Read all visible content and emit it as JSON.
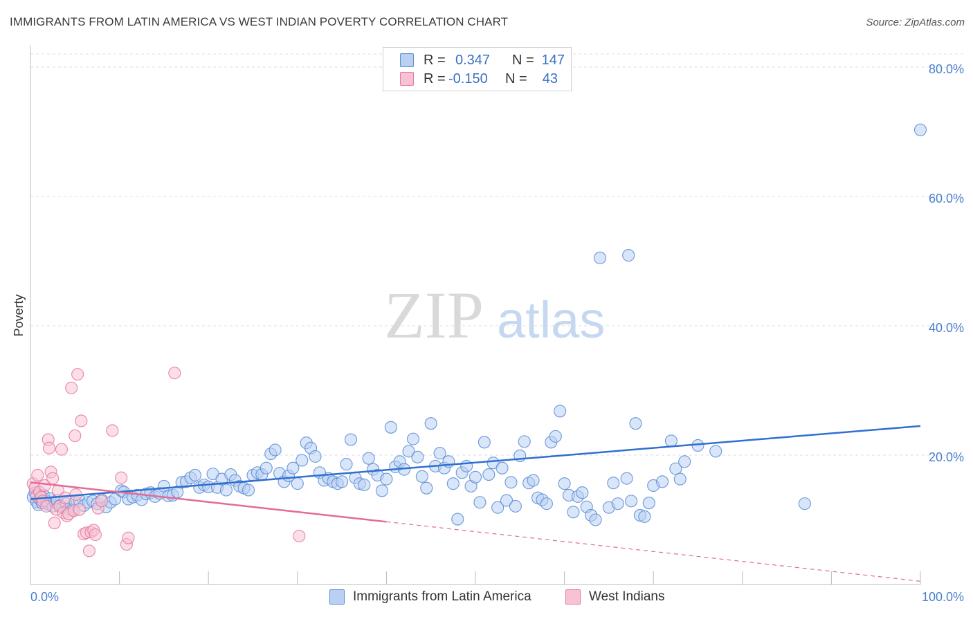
{
  "header": {
    "title": "IMMIGRANTS FROM LATIN AMERICA VS WEST INDIAN POVERTY CORRELATION CHART",
    "source": "Source: ZipAtlas.com"
  },
  "watermark": {
    "zip": "ZIP",
    "atlas": "atlas"
  },
  "legend": {
    "rows": [
      {
        "r_label": "R =",
        "r_value": "0.347",
        "n_label": "N =",
        "n_value": "147",
        "color": "#5b8ed6",
        "fill": "#b9d0f2"
      },
      {
        "r_label": "R =",
        "r_value": "-0.150",
        "n_label": "N =",
        "n_value": "43",
        "color": "#e47aa0",
        "fill": "#f7c3d4"
      }
    ]
  },
  "chart_data": {
    "type": "scatter",
    "title": "IMMIGRANTS FROM LATIN AMERICA VS WEST INDIAN POVERTY CORRELATION CHART",
    "xlabel": "",
    "ylabel": "Poverty",
    "xlim": [
      0,
      100
    ],
    "ylim": [
      0,
      80
    ],
    "x_tick_labels": [
      "0.0%",
      "100.0%"
    ],
    "y_ticks": [
      20,
      40,
      60,
      80
    ],
    "y_tick_labels": [
      "20.0%",
      "40.0%",
      "60.0%",
      "80.0%"
    ],
    "grid": true,
    "legend_position": "top-center",
    "series": [
      {
        "name": "Immigrants from Latin America",
        "color": "#5b8ed6",
        "fill": "#b9d0f2",
        "trend": {
          "x": [
            0,
            100
          ],
          "y": [
            13.2,
            24.5
          ],
          "style": "solid",
          "line_color": "#2f6fd0"
        },
        "points": [
          [
            0.3,
            13.5
          ],
          [
            0.5,
            14.2
          ],
          [
            0.7,
            12.8
          ],
          [
            0.9,
            12.3
          ],
          [
            1.1,
            13.1
          ],
          [
            1.3,
            12.6
          ],
          [
            1.5,
            13.8
          ],
          [
            1.8,
            12.9
          ],
          [
            2.0,
            12.4
          ],
          [
            2.2,
            13.3
          ],
          [
            2.5,
            12.1
          ],
          [
            2.8,
            12.7
          ],
          [
            3.0,
            13.0
          ],
          [
            3.3,
            12.2
          ],
          [
            3.6,
            11.9
          ],
          [
            4.0,
            12.5
          ],
          [
            4.3,
            11.7
          ],
          [
            4.7,
            11.5
          ],
          [
            5.0,
            12.8
          ],
          [
            5.5,
            13.0
          ],
          [
            6.0,
            12.2
          ],
          [
            6.5,
            12.7
          ],
          [
            7.0,
            12.9
          ],
          [
            7.5,
            12.5
          ],
          [
            8.0,
            13.1
          ],
          [
            8.5,
            12.0
          ],
          [
            9.0,
            12.7
          ],
          [
            9.5,
            13.2
          ],
          [
            10.2,
            14.5
          ],
          [
            10.5,
            14.3
          ],
          [
            11.0,
            13.2
          ],
          [
            11.5,
            13.5
          ],
          [
            12.0,
            13.8
          ],
          [
            12.5,
            13.1
          ],
          [
            13.0,
            14.0
          ],
          [
            13.5,
            14.2
          ],
          [
            14.0,
            13.6
          ],
          [
            14.5,
            14.1
          ],
          [
            15.0,
            15.2
          ],
          [
            15.5,
            13.7
          ],
          [
            16.0,
            13.8
          ],
          [
            16.5,
            14.3
          ],
          [
            17.0,
            15.8
          ],
          [
            17.5,
            15.9
          ],
          [
            18.0,
            16.5
          ],
          [
            18.5,
            16.9
          ],
          [
            19.0,
            15.0
          ],
          [
            19.5,
            15.4
          ],
          [
            20.0,
            15.1
          ],
          [
            20.5,
            17.1
          ],
          [
            21.0,
            15.0
          ],
          [
            21.5,
            16.3
          ],
          [
            22.0,
            14.6
          ],
          [
            22.5,
            17.0
          ],
          [
            23.0,
            16.1
          ],
          [
            23.5,
            15.2
          ],
          [
            24.0,
            14.9
          ],
          [
            24.5,
            14.6
          ],
          [
            25.0,
            16.9
          ],
          [
            25.5,
            17.3
          ],
          [
            26.0,
            17.0
          ],
          [
            26.5,
            18.0
          ],
          [
            27.0,
            20.2
          ],
          [
            27.5,
            20.8
          ],
          [
            28.0,
            17.2
          ],
          [
            28.5,
            15.9
          ],
          [
            29.0,
            16.8
          ],
          [
            29.5,
            18.0
          ],
          [
            30.0,
            15.6
          ],
          [
            30.5,
            19.2
          ],
          [
            31.0,
            21.9
          ],
          [
            31.5,
            21.1
          ],
          [
            32.0,
            19.8
          ],
          [
            32.5,
            17.3
          ],
          [
            33.0,
            16.1
          ],
          [
            33.5,
            16.4
          ],
          [
            34.0,
            15.9
          ],
          [
            34.5,
            15.6
          ],
          [
            35.0,
            15.9
          ],
          [
            35.5,
            18.6
          ],
          [
            36.0,
            22.4
          ],
          [
            36.5,
            16.5
          ],
          [
            37.0,
            15.6
          ],
          [
            37.5,
            15.4
          ],
          [
            38.0,
            19.5
          ],
          [
            38.5,
            17.8
          ],
          [
            39.0,
            16.9
          ],
          [
            39.5,
            14.5
          ],
          [
            40.0,
            16.3
          ],
          [
            40.5,
            24.3
          ],
          [
            41.0,
            18.2
          ],
          [
            41.5,
            19.0
          ],
          [
            42.0,
            17.8
          ],
          [
            42.5,
            20.6
          ],
          [
            43.0,
            22.5
          ],
          [
            43.5,
            19.7
          ],
          [
            44.0,
            16.7
          ],
          [
            44.5,
            14.9
          ],
          [
            45.0,
            24.9
          ],
          [
            45.5,
            18.3
          ],
          [
            46.0,
            20.3
          ],
          [
            46.5,
            18.0
          ],
          [
            47.0,
            19.0
          ],
          [
            47.5,
            15.6
          ],
          [
            48.0,
            10.1
          ],
          [
            48.5,
            17.3
          ],
          [
            49.0,
            18.3
          ],
          [
            49.5,
            15.2
          ],
          [
            50.0,
            16.6
          ],
          [
            50.5,
            12.7
          ],
          [
            51.0,
            22.0
          ],
          [
            51.5,
            17.0
          ],
          [
            52.0,
            18.8
          ],
          [
            52.5,
            11.9
          ],
          [
            53.0,
            18.0
          ],
          [
            53.5,
            13.0
          ],
          [
            54.0,
            15.8
          ],
          [
            54.5,
            12.1
          ],
          [
            55.0,
            19.9
          ],
          [
            55.5,
            22.1
          ],
          [
            56.0,
            15.7
          ],
          [
            56.5,
            16.1
          ],
          [
            57.0,
            13.4
          ],
          [
            57.5,
            13.1
          ],
          [
            58.0,
            12.5
          ],
          [
            58.5,
            22.0
          ],
          [
            59.0,
            22.9
          ],
          [
            59.5,
            26.8
          ],
          [
            60.0,
            15.6
          ],
          [
            60.5,
            13.8
          ],
          [
            61.0,
            11.2
          ],
          [
            61.5,
            13.6
          ],
          [
            62.0,
            14.2
          ],
          [
            62.5,
            12.0
          ],
          [
            63.0,
            10.7
          ],
          [
            63.5,
            10.0
          ],
          [
            64.0,
            50.5
          ],
          [
            65.0,
            11.9
          ],
          [
            65.5,
            15.7
          ],
          [
            66.0,
            12.5
          ],
          [
            67.0,
            16.4
          ],
          [
            67.2,
            50.9
          ],
          [
            67.5,
            12.9
          ],
          [
            68.0,
            24.9
          ],
          [
            68.5,
            10.7
          ],
          [
            69.0,
            10.5
          ],
          [
            69.5,
            12.6
          ],
          [
            70.0,
            15.3
          ],
          [
            71.0,
            15.9
          ],
          [
            72.0,
            22.2
          ],
          [
            72.5,
            17.9
          ],
          [
            73.0,
            16.3
          ],
          [
            73.5,
            19.0
          ],
          [
            75.0,
            21.5
          ],
          [
            77.0,
            20.6
          ],
          [
            87.0,
            12.5
          ],
          [
            100.0,
            70.3
          ]
        ]
      },
      {
        "name": "West Indians",
        "color": "#e47aa0",
        "fill": "#f7c3d4",
        "trend": {
          "x": [
            0,
            40,
            100
          ],
          "y": [
            15.8,
            9.7,
            0.5
          ],
          "style": "solid-then-dashed",
          "line_color": "#e46a96"
        },
        "points": [
          [
            0.3,
            15.6
          ],
          [
            0.5,
            14.9
          ],
          [
            0.7,
            13.7
          ],
          [
            0.8,
            16.9
          ],
          [
            1.0,
            14.3
          ],
          [
            1.2,
            13.5
          ],
          [
            1.4,
            12.9
          ],
          [
            1.6,
            15.3
          ],
          [
            1.8,
            12.1
          ],
          [
            2.0,
            22.4
          ],
          [
            2.1,
            21.1
          ],
          [
            2.3,
            17.4
          ],
          [
            2.5,
            16.4
          ],
          [
            2.7,
            9.5
          ],
          [
            2.9,
            11.6
          ],
          [
            3.1,
            14.5
          ],
          [
            3.3,
            12.1
          ],
          [
            3.5,
            20.9
          ],
          [
            3.7,
            11.1
          ],
          [
            3.9,
            13.4
          ],
          [
            4.1,
            10.6
          ],
          [
            4.3,
            10.9
          ],
          [
            4.6,
            30.4
          ],
          [
            4.9,
            11.4
          ],
          [
            5.0,
            23.0
          ],
          [
            5.1,
            13.9
          ],
          [
            5.3,
            32.5
          ],
          [
            5.5,
            11.6
          ],
          [
            5.7,
            25.3
          ],
          [
            6.0,
            7.8
          ],
          [
            6.3,
            8.0
          ],
          [
            6.6,
            5.2
          ],
          [
            6.8,
            8.1
          ],
          [
            7.1,
            8.4
          ],
          [
            7.3,
            7.7
          ],
          [
            7.6,
            11.8
          ],
          [
            8.0,
            12.9
          ],
          [
            9.2,
            23.8
          ],
          [
            10.2,
            16.5
          ],
          [
            10.8,
            6.2
          ],
          [
            11.0,
            7.2
          ],
          [
            16.2,
            32.7
          ],
          [
            30.2,
            7.5
          ]
        ]
      }
    ]
  }
}
